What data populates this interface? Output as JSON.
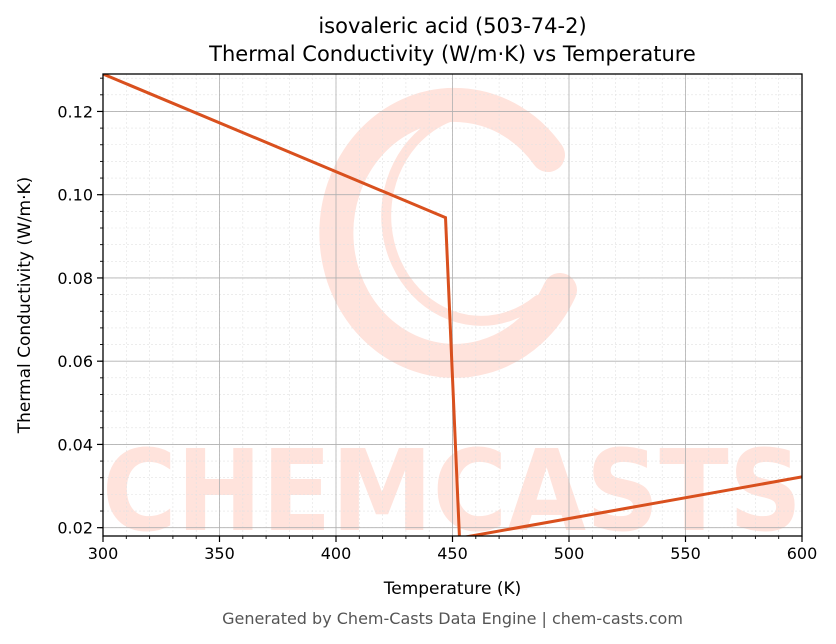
{
  "colors": {
    "series": "#d9501e",
    "watermark": "#ffe3dc",
    "grid_major": "#b0b0b0",
    "grid_minor": "#e2e2e2",
    "axes": "#000000"
  },
  "watermark": {
    "text": "CHEMCASTS"
  },
  "footer": {
    "text": "Generated by Chem-Casts Data Engine | chem-casts.com"
  },
  "chart_data": {
    "type": "line",
    "title_line1": "isovaleric acid (503-74-2)",
    "title_line2": "Thermal Conductivity (W/m·K) vs Temperature",
    "xlabel": "Temperature (K)",
    "ylabel": "Thermal Conductivity (W/m·K)",
    "xlim": [
      300,
      600
    ],
    "ylim": [
      0.018,
      0.129
    ],
    "xticks": [
      300,
      350,
      400,
      450,
      500,
      550,
      600
    ],
    "yticks": [
      0.02,
      0.04,
      0.06,
      0.08,
      0.1,
      0.12
    ],
    "xtick_labels": [
      "300",
      "350",
      "400",
      "450",
      "500",
      "550",
      "600"
    ],
    "ytick_labels": [
      "0.02",
      "0.04",
      "0.06",
      "0.08",
      "0.10",
      "0.12"
    ],
    "grid": true,
    "legend": "none",
    "series": [
      {
        "x": [
          300,
          447,
          453,
          600
        ],
        "y": [
          0.129,
          0.0945,
          0.0175,
          0.0322
        ]
      }
    ]
  }
}
